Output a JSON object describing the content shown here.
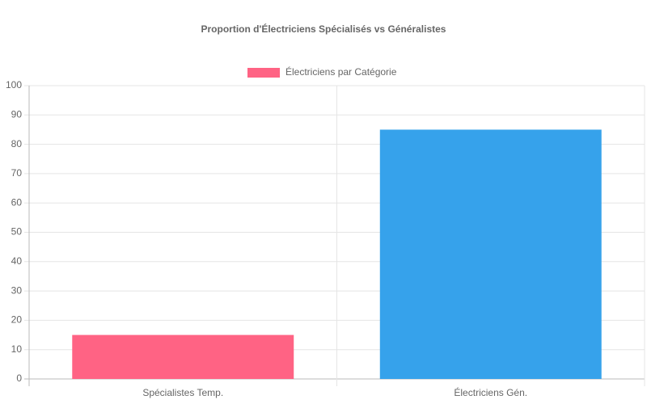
{
  "chart_data": {
    "type": "bar",
    "title": "Proportion d'Électriciens Spécialisés vs Généralistes",
    "categories": [
      "Spécialistes Temp.",
      "Électriciens Gén."
    ],
    "series": [
      {
        "name": "Électriciens par Catégorie",
        "colors": [
          "#ff6384",
          "#36a2eb"
        ],
        "values": [
          15,
          85
        ]
      }
    ],
    "ylim": [
      0,
      100
    ],
    "yticks": [
      0,
      10,
      20,
      30,
      40,
      50,
      60,
      70,
      80,
      90,
      100
    ],
    "grid": true,
    "legend": "top"
  }
}
